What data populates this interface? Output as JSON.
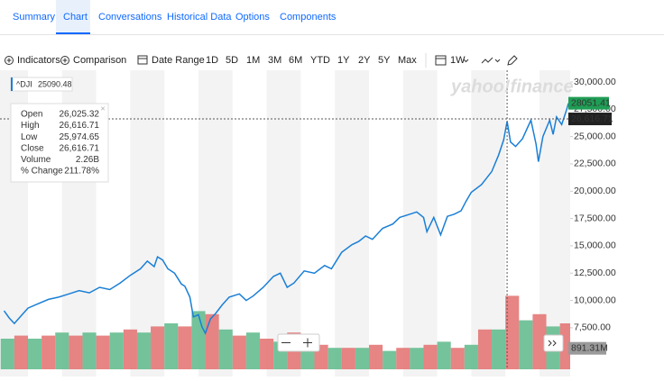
{
  "tabs": [
    "Summary",
    "Chart",
    "Conversations",
    "Historical Data",
    "Options",
    "Components"
  ],
  "toolbar": {
    "indicators": "Indicators",
    "comparison": "Comparison",
    "date_range": "Date Range",
    "ranges": [
      "1D",
      "5D",
      "1M",
      "3M",
      "6M",
      "YTD",
      "1Y",
      "2Y",
      "5Y",
      "Max"
    ],
    "interval": "1W"
  },
  "chart_data": {
    "type": "line",
    "watermark": "yahoo!finance",
    "symbol": "^DJI",
    "symbol_value": "25090.48",
    "tooltip": [
      {
        "label": "Open",
        "value": "26,025.32"
      },
      {
        "label": "High",
        "value": "26,616.71"
      },
      {
        "label": "Low",
        "value": "25,974.65"
      },
      {
        "label": "Close",
        "value": "26,616.71"
      },
      {
        "label": "Volume",
        "value": "2.26B"
      },
      {
        "label": "% Change",
        "value": "211.78%"
      }
    ],
    "xlim": [
      2003.18,
      2019.9
    ],
    "ylim": [
      3700,
      31730
    ],
    "y2lim": [
      0,
      10
    ],
    "yticks": [
      {
        "value": 30000,
        "label": "30,000.00"
      },
      {
        "value": 27500,
        "label": "27,500.00"
      },
      {
        "value": 25000,
        "label": "25,000.00"
      },
      {
        "value": 22500,
        "label": "22,500.00"
      },
      {
        "value": 20000,
        "label": "20,000.00"
      },
      {
        "value": 17500,
        "label": "17,500.00"
      },
      {
        "value": 15000,
        "label": "15,000.00"
      },
      {
        "value": 12500,
        "label": "12,500.00"
      },
      {
        "value": 10000,
        "label": "10,000.00"
      },
      {
        "value": 7500,
        "label": "7,500.00"
      }
    ],
    "last_price": 28051.41,
    "crosshair": {
      "x": 2018.05,
      "y": {
        "value": 26616.71,
        "label": "26,616.71"
      }
    },
    "last_volume": {
      "value": 0.89131,
      "label": "891.31M"
    },
    "series": [
      {
        "name": "^DJI",
        "color": "#1a7fd6",
        "x": [
          2003.3,
          2003.45,
          2003.6,
          2003.8,
          2004.0,
          2004.3,
          2004.6,
          2004.9,
          2005.2,
          2005.5,
          2005.8,
          2006.1,
          2006.4,
          2006.7,
          2007.0,
          2007.3,
          2007.5,
          2007.7,
          2007.8,
          2007.95,
          2008.1,
          2008.3,
          2008.5,
          2008.6,
          2008.75,
          2008.85,
          2009.0,
          2009.1,
          2009.2,
          2009.35,
          2009.5,
          2009.7,
          2009.9,
          2010.2,
          2010.4,
          2010.6,
          2010.9,
          2011.2,
          2011.4,
          2011.6,
          2011.8,
          2012.1,
          2012.4,
          2012.7,
          2012.9,
          2013.2,
          2013.5,
          2013.7,
          2013.9,
          2014.1,
          2014.4,
          2014.7,
          2014.9,
          2015.2,
          2015.4,
          2015.6,
          2015.7,
          2015.9,
          2016.1,
          2016.3,
          2016.5,
          2016.7,
          2016.85,
          2017.0,
          2017.3,
          2017.6,
          2017.8,
          2017.95,
          2018.05,
          2018.15,
          2018.3,
          2018.5,
          2018.75,
          2018.9,
          2018.97,
          2019.1,
          2019.3,
          2019.4,
          2019.5,
          2019.65,
          2019.8,
          2019.85
        ],
        "values": [
          9050,
          8400,
          7900,
          8600,
          9300,
          9700,
          10100,
          10300,
          10600,
          10900,
          10700,
          11200,
          11000,
          11600,
          12300,
          12900,
          13600,
          13100,
          14000,
          13700,
          12900,
          12500,
          11500,
          11300,
          10300,
          8500,
          8700,
          7600,
          7000,
          8300,
          8800,
          9600,
          10300,
          10600,
          10000,
          10400,
          11200,
          12200,
          12500,
          11200,
          11600,
          12700,
          12500,
          13200,
          12900,
          14400,
          15100,
          15400,
          15900,
          15600,
          16600,
          17000,
          17600,
          17900,
          18100,
          17600,
          16300,
          17600,
          16000,
          17700,
          17900,
          18200,
          19100,
          19900,
          20600,
          21800,
          23300,
          24700,
          26400,
          24500,
          24100,
          24800,
          26500,
          24300,
          22700,
          25000,
          26500,
          25200,
          26800,
          26100,
          27500,
          28051.41
        ]
      },
      {
        "name": "Volume",
        "axis": "y2",
        "width": 0.4,
        "colors": [
          "#5cb88a",
          "#e36f6f",
          "#5cb88a",
          "#e36f6f",
          "#5cb88a",
          "#e36f6f",
          "#5cb88a",
          "#e36f6f",
          "#5cb88a",
          "#e36f6f",
          "#5cb88a",
          "#e36f6f",
          "#5cb88a",
          "#e36f6f",
          "#5cb88a",
          "#e36f6f",
          "#5cb88a",
          "#e36f6f",
          "#5cb88a",
          "#e36f6f",
          "#5cb88a",
          "#e36f6f",
          "#5cb88a",
          "#e36f6f",
          "#5cb88a",
          "#e36f6f",
          "#5cb88a",
          "#e36f6f",
          "#5cb88a",
          "#e36f6f",
          "#5cb88a",
          "#e36f6f",
          "#5cb88a",
          "#e36f6f",
          "#5cb88a",
          "#e36f6f",
          "#5cb88a",
          "#e36f6f",
          "#5cb88a",
          "#e36f6f",
          "#5cb88a",
          "#e36f6f"
        ],
        "x": [
          2003.2,
          2003.6,
          2004.0,
          2004.4,
          2004.8,
          2005.2,
          2005.6,
          2006.0,
          2006.4,
          2006.8,
          2007.2,
          2007.6,
          2008.0,
          2008.4,
          2008.8,
          2009.2,
          2009.6,
          2010.0,
          2010.4,
          2010.8,
          2011.2,
          2011.6,
          2012.0,
          2012.4,
          2012.8,
          2013.2,
          2013.6,
          2014.0,
          2014.4,
          2014.8,
          2015.2,
          2015.6,
          2016.0,
          2016.4,
          2016.8,
          2017.2,
          2017.6,
          2018.0,
          2018.4,
          2018.8,
          2019.2,
          2019.6
        ],
        "values": [
          1.0,
          1.1,
          1.0,
          1.1,
          1.2,
          1.1,
          1.2,
          1.1,
          1.2,
          1.3,
          1.2,
          1.4,
          1.5,
          1.4,
          1.9,
          1.8,
          1.3,
          1.1,
          1.2,
          1.0,
          0.9,
          1.2,
          0.8,
          0.8,
          0.7,
          0.7,
          0.7,
          0.8,
          0.6,
          0.7,
          0.7,
          0.8,
          0.9,
          0.7,
          0.8,
          1.3,
          1.3,
          2.4,
          1.6,
          1.8,
          1.4,
          1.5
        ]
      }
    ]
  }
}
